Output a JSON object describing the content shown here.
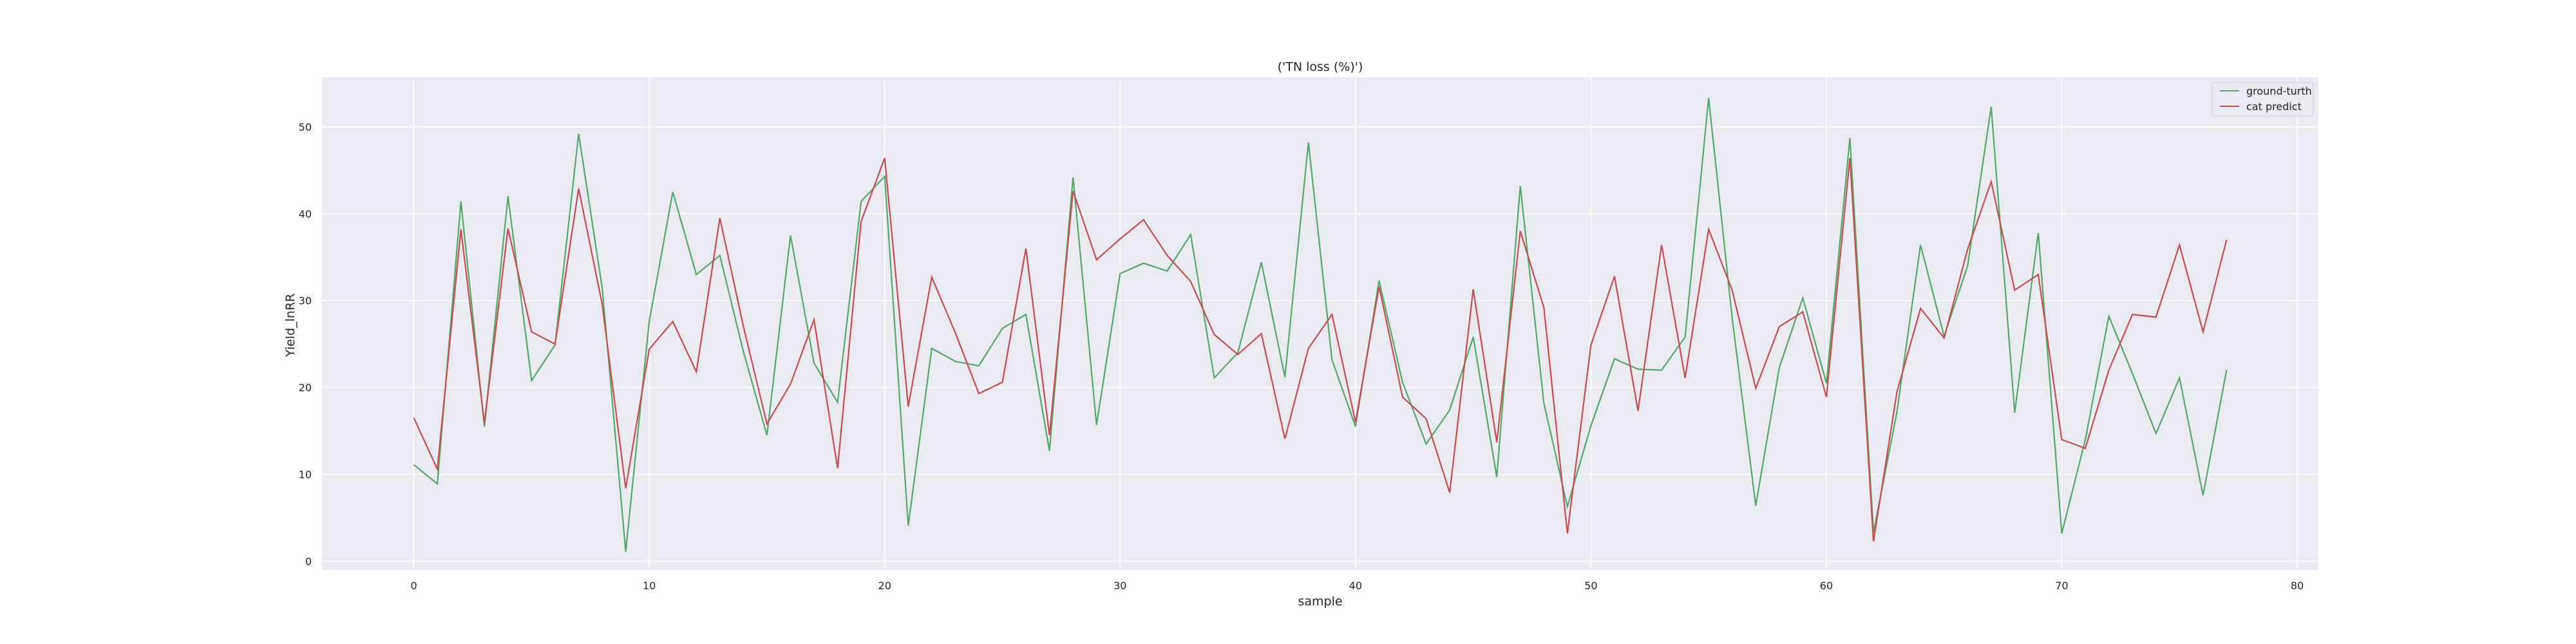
{
  "chart_data": {
    "type": "line",
    "title": "('TN loss (%)')",
    "xlabel": "sample",
    "ylabel": "Yield_lnRR",
    "xlim": [
      -3.9,
      80.9
    ],
    "ylim": [
      -1.0,
      55.7
    ],
    "xticks": [
      0,
      10,
      20,
      30,
      40,
      50,
      60,
      70,
      80
    ],
    "yticks": [
      0,
      10,
      20,
      30,
      40,
      50
    ],
    "grid": true,
    "legend_position": "top-right",
    "x": [
      0,
      1,
      2,
      3,
      4,
      5,
      6,
      7,
      8,
      9,
      10,
      11,
      12,
      13,
      14,
      15,
      16,
      17,
      18,
      19,
      20,
      21,
      22,
      23,
      24,
      25,
      26,
      27,
      28,
      29,
      30,
      31,
      32,
      33,
      34,
      35,
      36,
      37,
      38,
      39,
      40,
      41,
      42,
      43,
      44,
      45,
      46,
      47,
      48,
      49,
      50,
      51,
      52,
      53,
      54,
      55,
      56,
      57,
      58,
      59,
      60,
      61,
      62,
      63,
      64,
      65,
      66,
      67,
      68,
      69,
      70,
      71,
      72,
      73,
      74,
      75,
      76,
      77
    ],
    "series": [
      {
        "name": "ground-turth",
        "color": "#55a868",
        "values": [
          11.1,
          8.9,
          41.4,
          15.5,
          42.0,
          20.8,
          24.9,
          49.2,
          31.5,
          1.1,
          27.6,
          42.5,
          33.0,
          35.2,
          24.1,
          14.5,
          37.5,
          22.8,
          18.3,
          41.4,
          44.3,
          4.1,
          24.5,
          23.0,
          22.5,
          26.8,
          28.4,
          12.7,
          44.2,
          15.7,
          33.1,
          34.3,
          33.4,
          37.6,
          21.1,
          24.0,
          34.4,
          21.2,
          48.2,
          23.2,
          15.5,
          32.3,
          20.6,
          13.5,
          17.4,
          25.8,
          9.7,
          43.2,
          18.2,
          6.3,
          15.6,
          23.3,
          22.1,
          22.0,
          25.8,
          53.3,
          28.0,
          6.4,
          22.3,
          30.3,
          20.5,
          48.7,
          3.3,
          17.2,
          36.4,
          25.9,
          34.0,
          52.3,
          17.1,
          37.8,
          3.2,
          14.0,
          28.2,
          21.6,
          14.7,
          21.1,
          7.6,
          22.0
        ]
      },
      {
        "name": "cat predict",
        "color": "#c44e52",
        "values": [
          16.5,
          10.6,
          38.2,
          15.9,
          38.3,
          26.4,
          25.0,
          42.9,
          29.6,
          8.4,
          24.4,
          27.6,
          21.8,
          39.5,
          27.0,
          15.8,
          20.4,
          27.8,
          10.7,
          39.1,
          46.4,
          17.8,
          32.7,
          26.3,
          19.3,
          20.6,
          36.0,
          14.5,
          42.6,
          34.7,
          37.1,
          39.3,
          35.2,
          32.2,
          26.1,
          23.8,
          26.2,
          14.1,
          24.5,
          28.4,
          16.0,
          31.6,
          18.9,
          16.4,
          7.9,
          31.3,
          13.7,
          38.0,
          29.2,
          3.2,
          24.9,
          32.8,
          17.3,
          36.4,
          21.1,
          38.2,
          31.2,
          19.9,
          27.0,
          28.7,
          18.9,
          46.4,
          2.3,
          19.5,
          29.1,
          25.7,
          35.9,
          43.7,
          31.2,
          33.0,
          14.0,
          13.0,
          22.0,
          28.4,
          28.1,
          36.4,
          26.4,
          37.0
        ]
      }
    ]
  }
}
